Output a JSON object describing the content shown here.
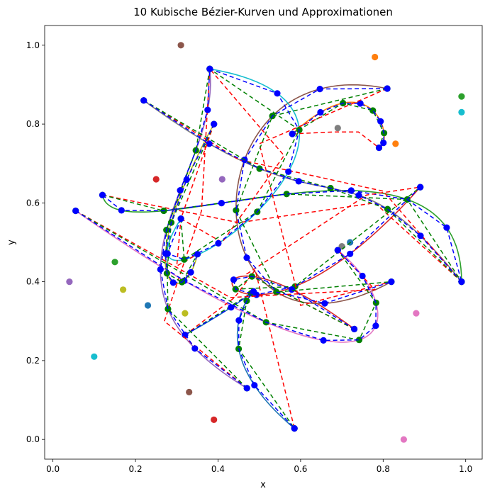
{
  "chart_data": {
    "type": "line",
    "title": "10 Kubische Bézier-Kurven und Approximationen",
    "xlabel": "x",
    "ylabel": "y",
    "xlim": [
      -0.02,
      1.04
    ],
    "ylim": [
      -0.05,
      1.05
    ],
    "x_ticks": [
      "0.0",
      "0.2",
      "0.4",
      "0.6",
      "0.8",
      "1.0"
    ],
    "y_ticks": [
      "0.0",
      "0.2",
      "0.4",
      "0.6",
      "0.8",
      "1.0"
    ],
    "grid": false,
    "legend": "none",
    "colors": {
      "approx_coarse": "#ff0000",
      "approx_mid": "#008000",
      "approx_fine": "#0000ff",
      "sample_points": "#0000ff"
    },
    "curves": [
      {
        "color": "#1f77b4",
        "control": [
          [
            0.32,
            0.265
          ],
          [
            0.72,
            0.5
          ],
          [
            0.23,
            0.34
          ],
          [
            0.585,
            0.028
          ]
        ],
        "midpoints": [
          [
            0.44,
            0.36
          ],
          [
            0.49,
            0.43
          ]
        ]
      },
      {
        "color": "#ff7f0e",
        "control": [
          [
            0.58,
            0.775
          ],
          [
            0.78,
            0.97
          ],
          [
            0.83,
            0.75
          ],
          [
            0.79,
            0.74
          ]
        ],
        "midpoints": [
          [
            0.68,
            0.78
          ],
          [
            0.74,
            0.78
          ]
        ]
      },
      {
        "color": "#2ca02c",
        "control": [
          [
            0.12,
            0.62
          ],
          [
            0.15,
            0.45
          ],
          [
            0.99,
            0.87
          ],
          [
            0.99,
            0.4
          ]
        ],
        "midpoints": [
          [
            0.45,
            0.55
          ],
          [
            0.78,
            0.6
          ]
        ]
      },
      {
        "color": "#d62728",
        "control": [
          [
            0.73,
            0.28
          ],
          [
            0.25,
            0.66
          ],
          [
            0.39,
            0.05
          ],
          [
            0.89,
            0.64
          ]
        ],
        "midpoints": [
          [
            0.47,
            0.42
          ],
          [
            0.76,
            0.62
          ]
        ]
      },
      {
        "color": "#9467bd",
        "control": [
          [
            0.47,
            0.13
          ],
          [
            0.04,
            0.4
          ],
          [
            0.41,
            0.66
          ],
          [
            0.38,
            0.94
          ]
        ],
        "midpoints": [
          [
            0.27,
            0.3
          ],
          [
            0.36,
            0.58
          ]
        ]
      },
      {
        "color": "#8c564b",
        "control": [
          [
            0.81,
            0.89
          ],
          [
            0.31,
            1.0
          ],
          [
            0.33,
            0.12
          ],
          [
            0.82,
            0.4
          ]
        ],
        "midpoints": [
          [
            0.5,
            0.75
          ],
          [
            0.6,
            0.34
          ]
        ]
      },
      {
        "color": "#e377c2",
        "control": [
          [
            0.055,
            0.58
          ],
          [
            0.85,
            0.0
          ],
          [
            0.88,
            0.32
          ],
          [
            0.69,
            0.48
          ]
        ],
        "midpoints": [
          [
            0.43,
            0.36
          ],
          [
            0.78,
            0.38
          ]
        ]
      },
      {
        "color": "#7f7f7f",
        "control": [
          [
            0.22,
            0.86
          ],
          [
            0.7,
            0.49
          ],
          [
            0.69,
            0.79
          ],
          [
            0.99,
            0.4
          ]
        ],
        "midpoints": [
          [
            0.45,
            0.71
          ],
          [
            0.8,
            0.63
          ]
        ]
      },
      {
        "color": "#bcbd22",
        "control": [
          [
            0.39,
            0.8
          ],
          [
            0.17,
            0.38
          ],
          [
            0.32,
            0.32
          ],
          [
            0.35,
            0.47
          ]
        ],
        "midpoints": [
          [
            0.31,
            0.56
          ],
          [
            0.3,
            0.44
          ]
        ]
      },
      {
        "color": "#17becf",
        "control": [
          [
            0.31,
            0.56
          ],
          [
            0.1,
            0.21
          ],
          [
            0.99,
            0.83
          ],
          [
            0.38,
            0.94
          ]
        ],
        "midpoints": [
          [
            0.41,
            0.5
          ],
          [
            0.56,
            0.72
          ]
        ]
      }
    ]
  }
}
